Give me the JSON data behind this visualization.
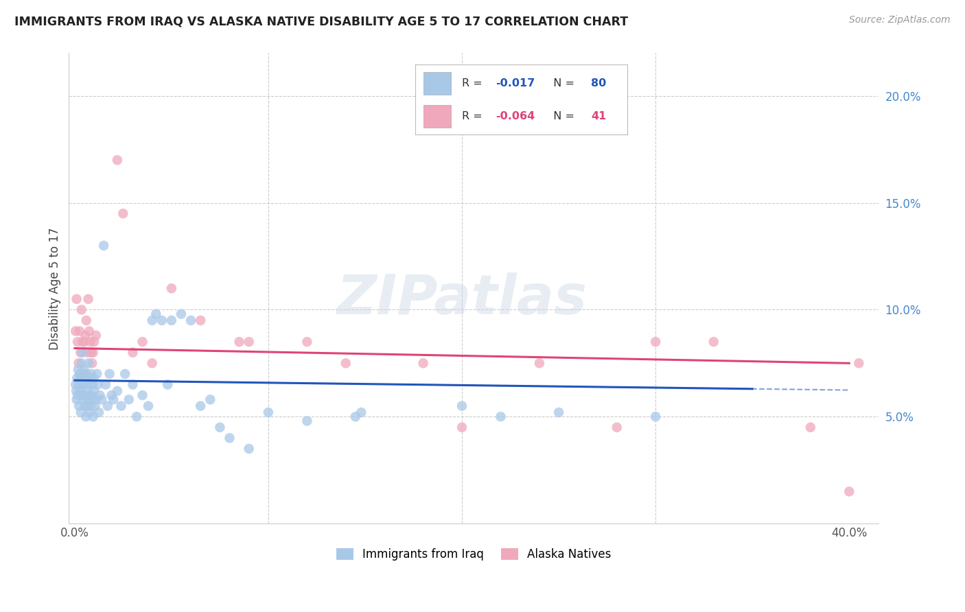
{
  "title": "IMMIGRANTS FROM IRAQ VS ALASKA NATIVE DISABILITY AGE 5 TO 17 CORRELATION CHART",
  "source": "Source: ZipAtlas.com",
  "ylabel": "Disability Age 5 to 17",
  "legend_blue_r": "-0.017",
  "legend_blue_n": "80",
  "legend_pink_r": "-0.064",
  "legend_pink_n": "41",
  "legend_label_blue": "Immigrants from Iraq",
  "legend_label_pink": "Alaska Natives",
  "watermark": "ZIPatlas",
  "blue_color": "#a8c8e8",
  "pink_color": "#f0a8bc",
  "blue_line_color": "#2255bb",
  "pink_line_color": "#dd4477",
  "blue_r_color": "#2255bb",
  "pink_r_color": "#dd4477",
  "right_ytick_color": "#4488cc",
  "xmin": 0.0,
  "xmax": 40.0,
  "ymin": 0.0,
  "ymax": 22.0,
  "blue_line_x0": 0.0,
  "blue_line_y0": 6.7,
  "blue_line_x1": 35.0,
  "blue_line_y1": 6.3,
  "blue_dash_x0": 6.0,
  "blue_dash_x1": 40.0,
  "pink_line_x0": 0.0,
  "pink_line_y0": 8.2,
  "pink_line_x1": 40.0,
  "pink_line_y1": 7.5,
  "blue_x": [
    0.05,
    0.08,
    0.1,
    0.12,
    0.15,
    0.18,
    0.2,
    0.22,
    0.25,
    0.28,
    0.3,
    0.32,
    0.35,
    0.38,
    0.4,
    0.42,
    0.45,
    0.48,
    0.5,
    0.52,
    0.55,
    0.58,
    0.6,
    0.62,
    0.65,
    0.68,
    0.7,
    0.72,
    0.75,
    0.78,
    0.8,
    0.82,
    0.85,
    0.88,
    0.9,
    0.92,
    0.95,
    0.98,
    1.0,
    1.05,
    1.1,
    1.15,
    1.2,
    1.25,
    1.3,
    1.4,
    1.5,
    1.6,
    1.7,
    1.8,
    1.9,
    2.0,
    2.2,
    2.4,
    2.6,
    2.8,
    3.0,
    3.2,
    3.5,
    3.8,
    4.0,
    4.2,
    4.5,
    4.8,
    5.0,
    5.5,
    6.0,
    6.5,
    7.0,
    7.5,
    8.0,
    9.0,
    10.0,
    12.0,
    14.5,
    14.8,
    20.0,
    22.0,
    25.0,
    30.0
  ],
  "blue_y": [
    6.5,
    6.2,
    5.8,
    6.8,
    6.0,
    7.2,
    6.5,
    5.5,
    7.0,
    6.3,
    6.8,
    5.2,
    7.5,
    6.0,
    8.0,
    6.5,
    5.8,
    7.2,
    6.0,
    5.5,
    6.8,
    5.0,
    7.0,
    6.2,
    5.5,
    6.5,
    5.8,
    7.5,
    6.0,
    5.2,
    6.8,
    5.5,
    7.0,
    6.0,
    5.8,
    6.5,
    5.0,
    6.8,
    6.2,
    5.5,
    5.8,
    7.0,
    6.5,
    5.2,
    6.0,
    5.8,
    13.0,
    6.5,
    5.5,
    7.0,
    6.0,
    5.8,
    6.2,
    5.5,
    7.0,
    5.8,
    6.5,
    5.0,
    6.0,
    5.5,
    9.5,
    9.8,
    9.5,
    6.5,
    9.5,
    9.8,
    9.5,
    5.5,
    5.8,
    4.5,
    4.0,
    3.5,
    5.2,
    4.8,
    5.0,
    5.2,
    5.5,
    5.0,
    5.2,
    5.0
  ],
  "pink_x": [
    0.05,
    0.1,
    0.15,
    0.2,
    0.25,
    0.3,
    0.35,
    0.4,
    0.45,
    0.5,
    0.55,
    0.6,
    0.65,
    0.7,
    0.75,
    0.8,
    0.85,
    0.9,
    0.95,
    1.0,
    1.1,
    2.2,
    2.5,
    3.0,
    3.5,
    4.0,
    5.0,
    6.5,
    8.5,
    9.0,
    12.0,
    14.0,
    18.0,
    20.0,
    24.0,
    28.0,
    30.0,
    33.0,
    38.0,
    40.0,
    40.5
  ],
  "pink_y": [
    9.0,
    10.5,
    8.5,
    7.5,
    9.0,
    8.0,
    10.0,
    8.5,
    7.0,
    8.5,
    8.8,
    9.5,
    8.0,
    10.5,
    9.0,
    8.5,
    8.0,
    7.5,
    8.0,
    8.5,
    8.8,
    17.0,
    14.5,
    8.0,
    8.5,
    7.5,
    11.0,
    9.5,
    8.5,
    8.5,
    8.5,
    7.5,
    7.5,
    4.5,
    7.5,
    4.5,
    8.5,
    8.5,
    4.5,
    1.5,
    7.5
  ]
}
